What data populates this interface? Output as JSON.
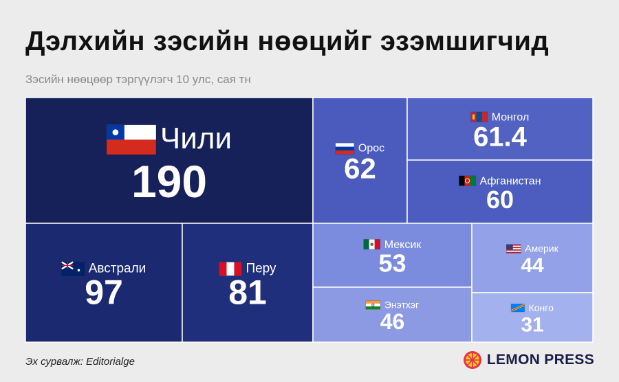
{
  "header": {
    "title": "Дэлхийн зэсийн нөөцийг эзэмшигчид",
    "subtitle": "Зэсийн нөөцөөр тэргүүлэгч 10 улс, сая тн"
  },
  "chart_data": {
    "type": "treemap",
    "title": "Дэлхийн зэсийн нөөцийг эзэмшигчид",
    "subtitle": "Зэсийн нөөцөөр тэргүүлэгч 10 улс, сая тн",
    "items": [
      {
        "name": "Чили",
        "value": 190,
        "label": "190",
        "color": "#16215a",
        "flag": "chile-flag-icon"
      },
      {
        "name": "Австрали",
        "value": 97,
        "label": "97",
        "color": "#1b2a70",
        "flag": "australia-flag-icon"
      },
      {
        "name": "Перу",
        "value": 81,
        "label": "81",
        "color": "#1f2f7c",
        "flag": "peru-flag-icon"
      },
      {
        "name": "Орос",
        "value": 62,
        "label": "62",
        "color": "#4a5bbd",
        "flag": "russia-flag-icon"
      },
      {
        "name": "Монгол",
        "value": 61.4,
        "label": "61.4",
        "color": "#5262c2",
        "flag": "mongolia-flag-icon"
      },
      {
        "name": "Афганистан",
        "value": 60,
        "label": "60",
        "color": "#4c5dbf",
        "flag": "afghanistan-flag-icon"
      },
      {
        "name": "Мексик",
        "value": 53,
        "label": "53",
        "color": "#7b8cde",
        "flag": "mexico-flag-icon"
      },
      {
        "name": "Энэтхэг",
        "value": 46,
        "label": "46",
        "color": "#8b9ae2",
        "flag": "india-flag-icon"
      },
      {
        "name": "Америк",
        "value": 44,
        "label": "44",
        "color": "#93a2e8",
        "flag": "usa-flag-icon"
      },
      {
        "name": "Конго",
        "value": 31,
        "label": "31",
        "color": "#a3b1ee",
        "flag": "congo-flag-icon"
      }
    ]
  },
  "footer": {
    "source": "Эх сурвалж: Editorialge",
    "brand": "LEMON PRESS",
    "brand_colors": {
      "red": "#e8324a",
      "yellow": "#f6c21b",
      "navy": "#1c1c4a"
    },
    "logo_icon": "lemon-logo-icon"
  }
}
